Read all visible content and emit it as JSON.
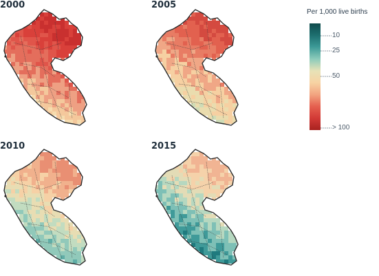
{
  "panels": [
    {
      "year": "2000",
      "palette": [
        "#c9302f",
        "#d9403a",
        "#e0554a",
        "#e46e5c",
        "#eea083",
        "#f4c89c",
        "#f6dcae"
      ]
    },
    {
      "year": "2005",
      "palette": [
        "#d44a40",
        "#e2614f",
        "#e87c64",
        "#f0a786",
        "#f6d0a2",
        "#eadcae",
        "#cfdcb6"
      ]
    },
    {
      "year": "2010",
      "palette": [
        "#e98f73",
        "#f1b18d",
        "#f6d1a6",
        "#e8ddb3",
        "#c2dcc0",
        "#91c9ba",
        "#5fada6"
      ]
    },
    {
      "year": "2015",
      "palette": [
        "#f1b493",
        "#f5d2aa",
        "#e3dcb6",
        "#b6d8c0",
        "#7ec0b6",
        "#3f9a99",
        "#1f7a7e"
      ]
    }
  ],
  "legend": {
    "title": "Per 1,000 live births",
    "ticks": [
      {
        "label": "10",
        "value": 10
      },
      {
        "label": "25",
        "value": 25
      },
      {
        "label": "50",
        "value": 50
      },
      {
        "label": "> 100",
        "value": 100
      }
    ],
    "colors": [
      "#0f4b4c",
      "#1d6f70",
      "#3e9b98",
      "#8ccbbb",
      "#e7e2b7",
      "#f7d3a3",
      "#f2a480",
      "#e5604f",
      "#d23a36",
      "#a8221f"
    ]
  }
}
